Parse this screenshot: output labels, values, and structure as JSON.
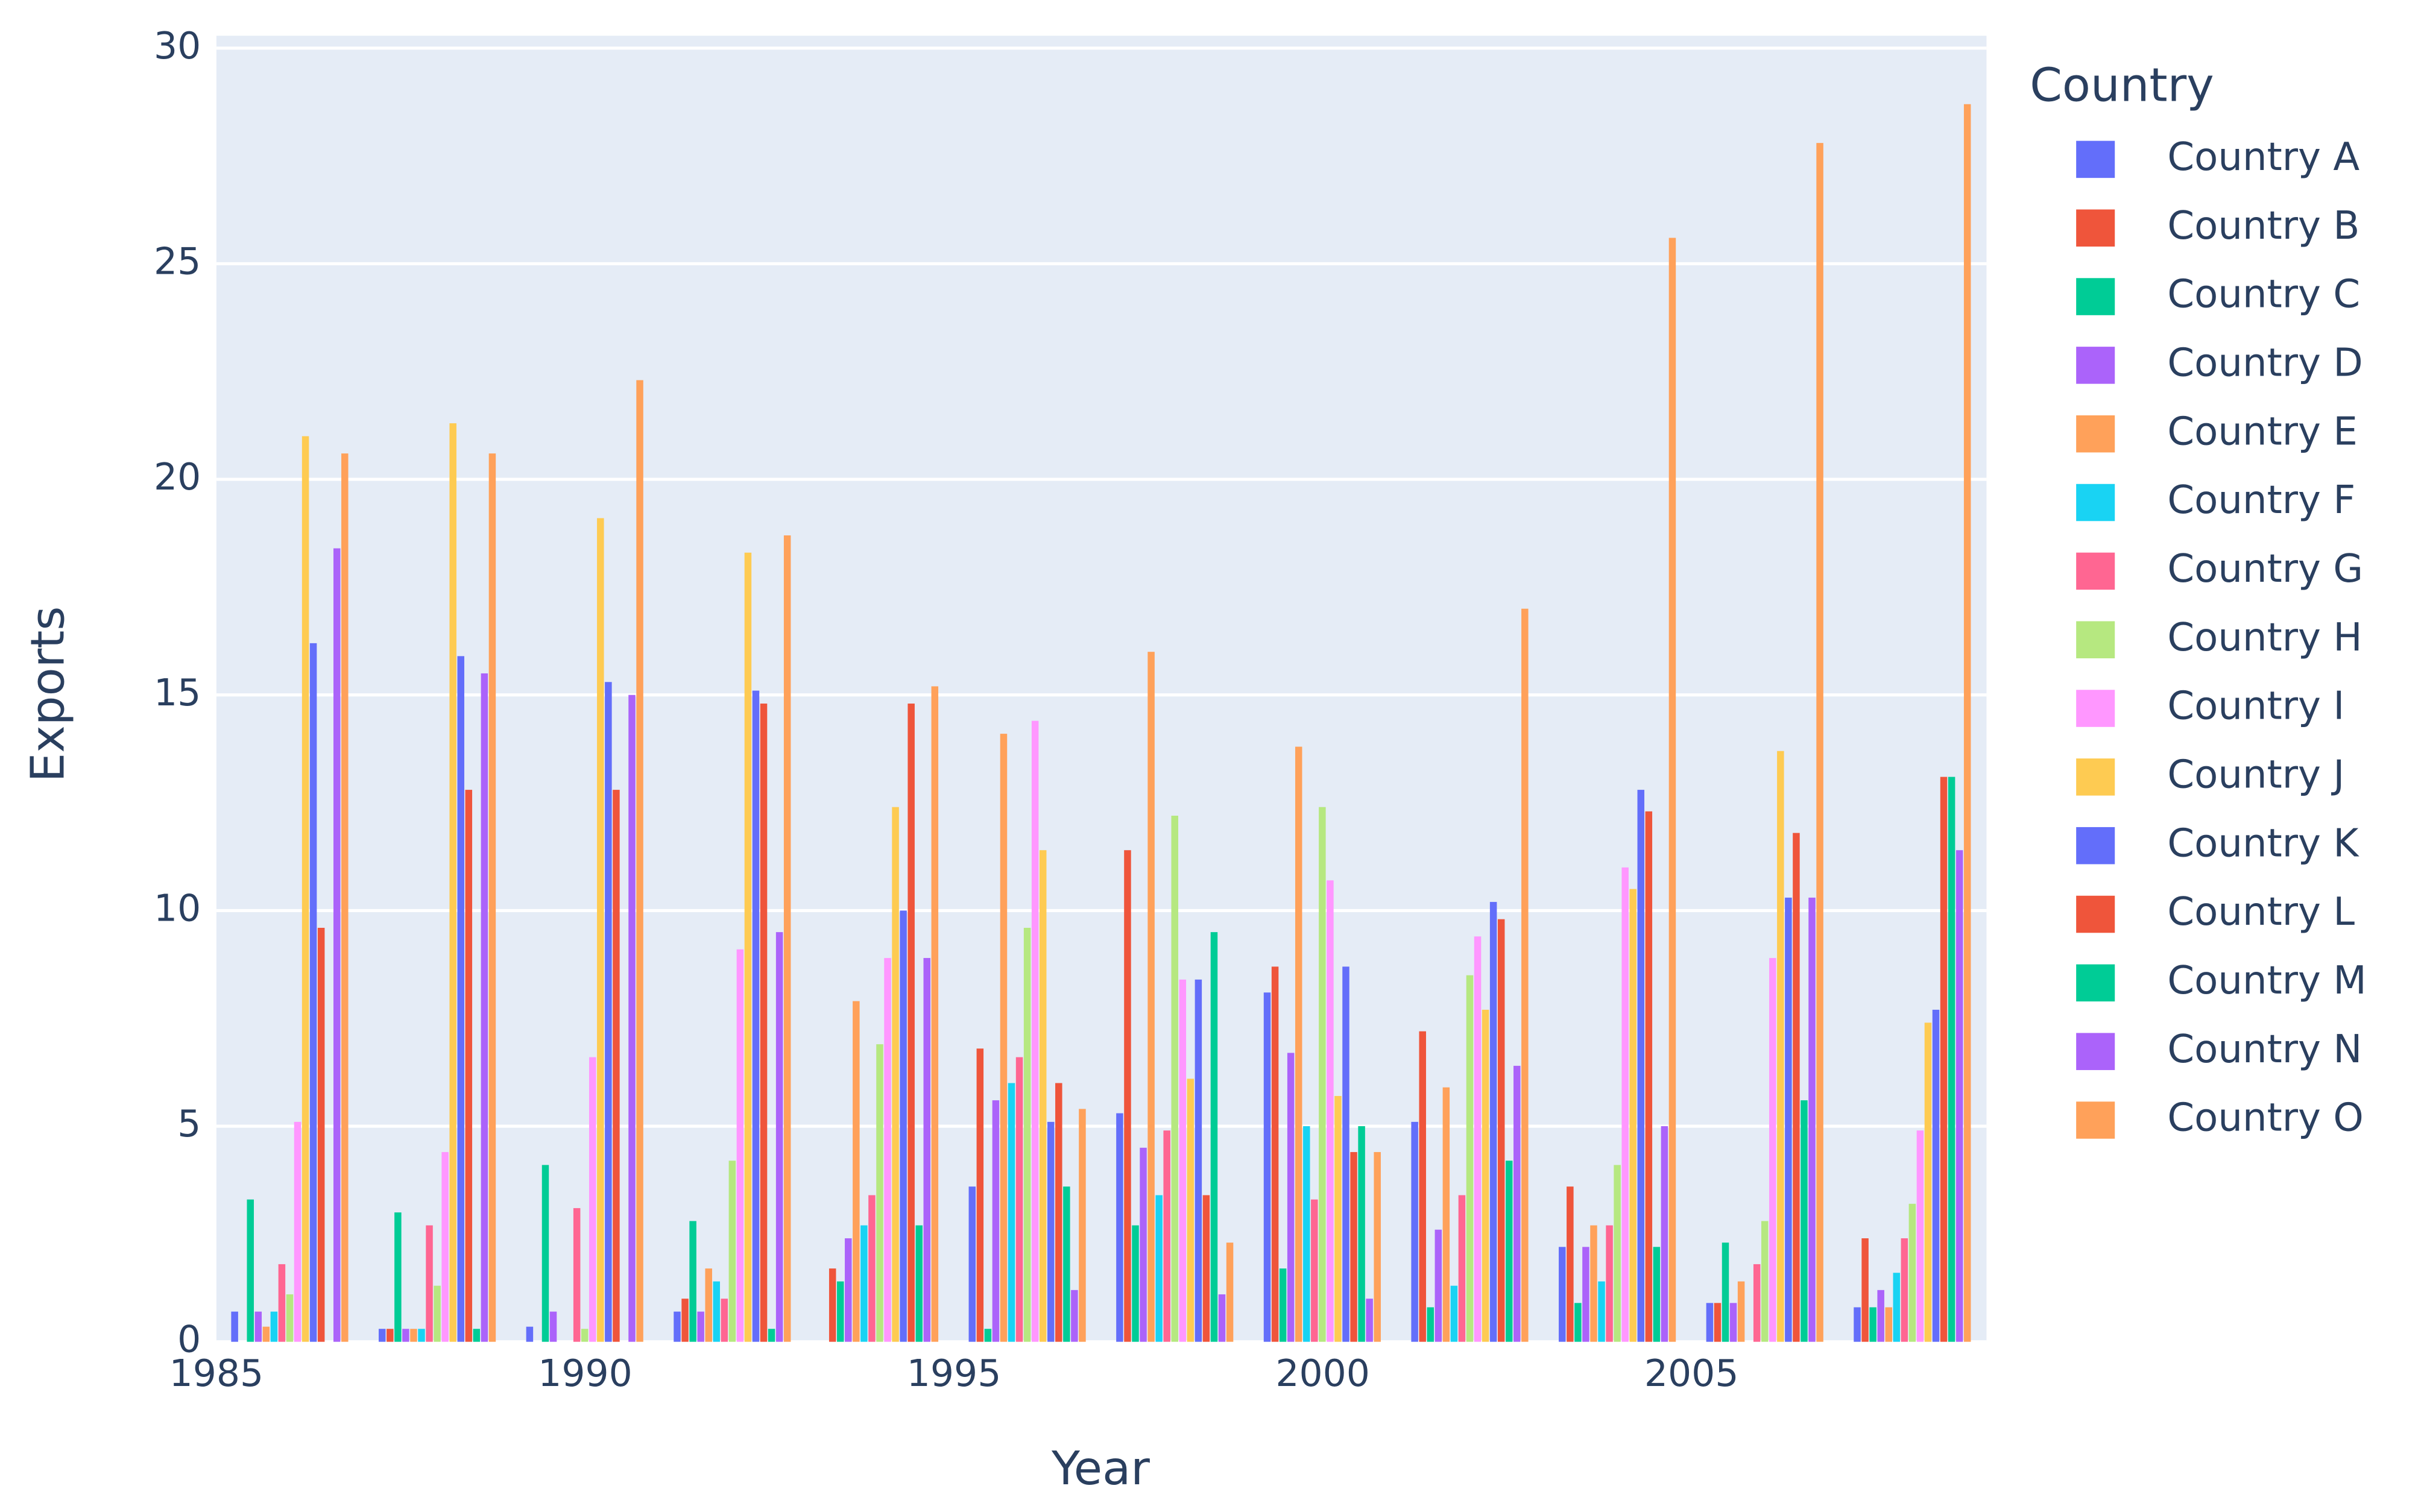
{
  "chart_data": {
    "type": "bar",
    "x_label": "Year",
    "y_label": "Exports",
    "legend_title": "Country",
    "x": [
      1986,
      1988,
      1990,
      1992,
      1994,
      1996,
      1998,
      2000,
      2002,
      2004,
      2006,
      2008
    ],
    "xlim": [
      1985,
      2009
    ],
    "xticks": [
      1985,
      1990,
      1995,
      2000,
      2005
    ],
    "ylim": [
      0,
      30
    ],
    "yticks": [
      0,
      5,
      10,
      15,
      20,
      25,
      30
    ],
    "grid": true,
    "series": [
      {
        "name": "Country A",
        "color": "#636efa",
        "values": [
          0.7,
          0.3,
          0.35,
          0.7,
          0,
          3.6,
          5.3,
          8.1,
          5.1,
          2.2,
          0.9,
          0.8
        ]
      },
      {
        "name": "Country B",
        "color": "#ef553b",
        "values": [
          0,
          0.3,
          0,
          1.0,
          1.7,
          6.8,
          11.4,
          8.7,
          7.2,
          3.6,
          0.9,
          2.4
        ]
      },
      {
        "name": "Country C",
        "color": "#00cc96",
        "values": [
          3.3,
          3.0,
          4.1,
          2.8,
          1.4,
          0.3,
          2.7,
          1.7,
          0.8,
          0.9,
          2.3,
          0.8
        ]
      },
      {
        "name": "Country D",
        "color": "#ab63fa",
        "values": [
          0.7,
          0.3,
          0.7,
          0.7,
          2.4,
          5.6,
          4.5,
          6.7,
          2.6,
          2.2,
          0.9,
          1.2
        ]
      },
      {
        "name": "Country E",
        "color": "#ffa15a",
        "values": [
          0.35,
          0.3,
          0,
          1.7,
          7.9,
          14.1,
          16.0,
          13.8,
          5.9,
          2.7,
          1.4,
          0.8
        ]
      },
      {
        "name": "Country F",
        "color": "#19d3f3",
        "values": [
          0.7,
          0.3,
          0,
          1.4,
          2.7,
          6.0,
          3.4,
          5.0,
          1.3,
          1.4,
          0,
          1.6
        ]
      },
      {
        "name": "Country G",
        "color": "#ff6692",
        "values": [
          1.8,
          2.7,
          3.1,
          1.0,
          3.4,
          6.6,
          4.9,
          3.3,
          3.4,
          2.7,
          1.8,
          2.4
        ]
      },
      {
        "name": "Country H",
        "color": "#b6e880",
        "values": [
          1.1,
          1.3,
          0.3,
          4.2,
          6.9,
          9.6,
          12.2,
          12.4,
          8.5,
          4.1,
          2.8,
          3.2
        ]
      },
      {
        "name": "Country I",
        "color": "#ff97ff",
        "values": [
          5.1,
          4.4,
          6.6,
          9.1,
          8.9,
          14.4,
          8.4,
          10.7,
          9.4,
          11.0,
          8.9,
          4.9
        ]
      },
      {
        "name": "Country J",
        "color": "#fecb52",
        "values": [
          21.0,
          21.3,
          19.1,
          18.3,
          12.4,
          11.4,
          6.1,
          5.7,
          7.7,
          10.5,
          13.7,
          7.4
        ]
      },
      {
        "name": "Country K",
        "color": "#636efa",
        "values": [
          16.2,
          15.9,
          15.3,
          15.1,
          10.0,
          5.1,
          8.4,
          8.7,
          10.2,
          12.8,
          10.3,
          7.7
        ]
      },
      {
        "name": "Country L",
        "color": "#ef553b",
        "values": [
          9.6,
          12.8,
          12.8,
          14.8,
          14.8,
          6.0,
          3.4,
          4.4,
          9.8,
          12.3,
          11.8,
          13.1
        ]
      },
      {
        "name": "Country M",
        "color": "#00cc96",
        "values": [
          0,
          0.3,
          0,
          0.3,
          2.7,
          3.6,
          9.5,
          5.0,
          4.2,
          2.2,
          5.6,
          13.1
        ]
      },
      {
        "name": "Country N",
        "color": "#ab63fa",
        "values": [
          18.4,
          15.5,
          15.0,
          9.5,
          8.9,
          1.2,
          1.1,
          1.0,
          6.4,
          5.0,
          10.3,
          11.4
        ]
      },
      {
        "name": "Country O",
        "color": "#ffa15a",
        "values": [
          20.6,
          20.6,
          22.3,
          18.7,
          15.2,
          5.4,
          2.3,
          4.4,
          17.0,
          25.6,
          27.8,
          28.7
        ]
      }
    ]
  }
}
